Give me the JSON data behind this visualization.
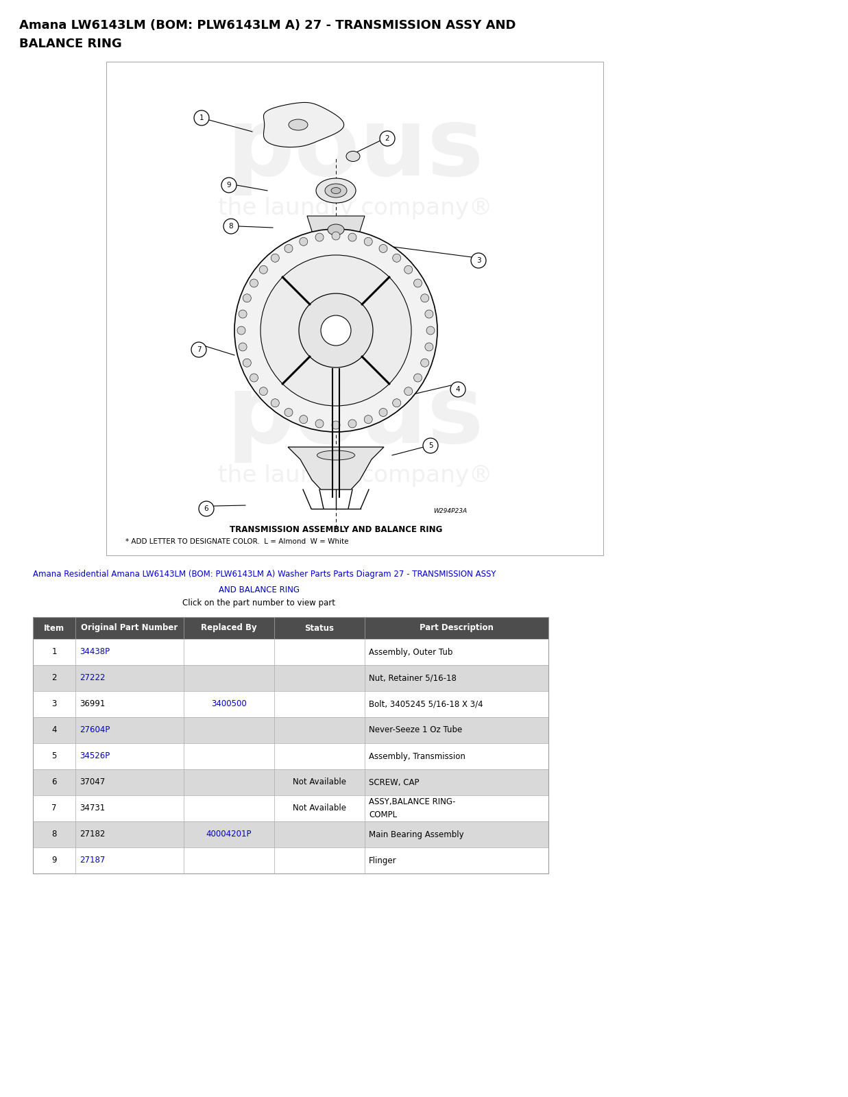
{
  "title_line1": "Amana LW6143LM (BOM: PLW6143LM A) 27 - TRANSMISSION ASSY AND",
  "title_line2": "BALANCE RING",
  "title_fontsize": 13,
  "bg_color": "#ffffff",
  "watermark_text1": "pous",
  "watermark_text2": "the laundry company®",
  "diagram_caption": "TRANSMISSION ASSEMBLY AND BALANCE RING",
  "diagram_note": "* ADD LETTER TO DESIGNATE COLOR.  L = Almond  W = White",
  "diagram_code": "W294P23A",
  "link_line1": "Amana Residential Amana LW6143LM (BOM: PLW6143LM A) Washer Parts Parts Diagram 27 - TRANSMISSION ASSY",
  "link_line2": "AND BALANCE RING",
  "link_line3": "Click on the part number to view part",
  "table_header": [
    "Item",
    "Original Part Number",
    "Replaced By",
    "Status",
    "Part Description"
  ],
  "table_header_bg": "#4d4d4d",
  "table_header_color": "#ffffff",
  "table_row_alt_bg": "#d9d9d9",
  "table_row_bg": "#ffffff",
  "table_rows": [
    [
      "1",
      "34438P",
      "",
      "",
      "Assembly, Outer Tub"
    ],
    [
      "2",
      "27222",
      "",
      "",
      "Nut, Retainer 5/16-18"
    ],
    [
      "3",
      "36991",
      "3400500",
      "",
      "Bolt, 3405245 5/16-18 X 3/4"
    ],
    [
      "4",
      "27604P",
      "",
      "",
      "Never-Seeze 1 Oz Tube"
    ],
    [
      "5",
      "34526P",
      "",
      "",
      "Assembly, Transmission"
    ],
    [
      "6",
      "37047",
      "",
      "Not Available",
      "SCREW, CAP"
    ],
    [
      "7",
      "34731",
      "",
      "Not Available",
      "ASSY,BALANCE RING-\nCOMPL"
    ],
    [
      "8",
      "27182",
      "40004201P",
      "",
      "Main Bearing Assembly"
    ],
    [
      "9",
      "27187",
      "",
      "",
      "Flinger"
    ]
  ],
  "link_color": "#0000cc",
  "linked_part_numbers": [
    "34438P",
    "27222",
    "27604P",
    "34526P",
    "27187"
  ],
  "linked_replaced_by": [
    "3400500",
    "40004201P"
  ]
}
